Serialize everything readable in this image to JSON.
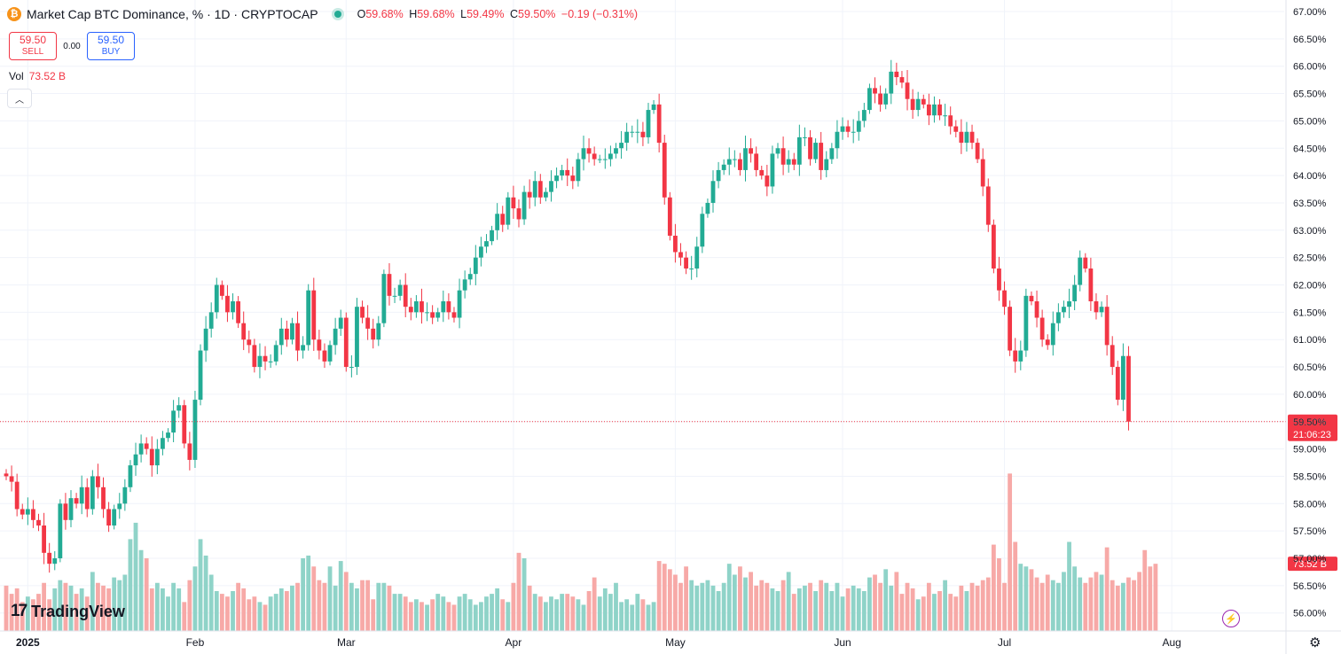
{
  "header": {
    "coin_icon": "bitcoin-icon",
    "title": "Market Cap BTC Dominance, % · 1D · CRYPTOCAP",
    "ohlc": {
      "o_label": "O",
      "o_value": "59.68%",
      "h_label": "H",
      "h_value": "59.68%",
      "l_label": "L",
      "l_value": "59.49%",
      "c_label": "C",
      "c_value": "59.50%",
      "change": "−0.19 (−0.31%)"
    }
  },
  "trade": {
    "sell_price": "59.50",
    "sell_label": "SELL",
    "spread": "0.00",
    "buy_price": "59.50",
    "buy_label": "BUY"
  },
  "volume": {
    "label": "Vol",
    "value": "73.52 B"
  },
  "price_tag": {
    "value": "59.50%",
    "countdown": "21:06:23"
  },
  "volume_tag": "73.52 B",
  "branding": "TradingView",
  "colors": {
    "up": "#22ab94",
    "down": "#f23645",
    "up_volume": "#8fd3c8",
    "down_volume": "#f7a9a7",
    "grid": "#f0f3fa",
    "text": "#131722"
  },
  "chart_data": {
    "type": "candlestick",
    "title": "Market Cap BTC Dominance, % · 1D · CRYPTOCAP",
    "ylim": [
      55.75,
      67.2
    ],
    "y_ticks": [
      "67.00%",
      "66.50%",
      "66.00%",
      "65.50%",
      "65.00%",
      "64.50%",
      "64.00%",
      "63.50%",
      "63.00%",
      "62.50%",
      "62.00%",
      "61.50%",
      "61.00%",
      "60.50%",
      "60.00%",
      "59.50%",
      "59.00%",
      "58.50%",
      "58.00%",
      "57.50%",
      "57.00%",
      "56.50%",
      "56.00%"
    ],
    "x_ticks": [
      {
        "label": "2025",
        "index": 4
      },
      {
        "label": "Feb",
        "index": 35
      },
      {
        "label": "Mar",
        "index": 63
      },
      {
        "label": "Apr",
        "index": 94
      },
      {
        "label": "May",
        "index": 124
      },
      {
        "label": "Jun",
        "index": 155
      },
      {
        "label": "Jul",
        "index": 185
      },
      {
        "label": "Aug",
        "index": 216
      }
    ],
    "current_price": 59.5,
    "closes": [
      58.5,
      58.4,
      57.9,
      57.8,
      57.9,
      57.7,
      57.6,
      57.1,
      56.9,
      57.0,
      58.0,
      57.7,
      58.1,
      58.0,
      58.3,
      57.9,
      58.5,
      58.3,
      57.9,
      57.6,
      57.9,
      58.0,
      58.3,
      58.7,
      58.9,
      59.1,
      59.0,
      58.7,
      59.0,
      59.2,
      59.3,
      59.7,
      59.8,
      59.1,
      58.8,
      59.9,
      60.8,
      61.2,
      61.5,
      62.0,
      61.8,
      61.5,
      61.7,
      61.3,
      61.0,
      60.9,
      60.5,
      60.7,
      60.6,
      60.6,
      60.9,
      61.2,
      61.0,
      61.3,
      60.8,
      60.9,
      61.9,
      61.0,
      60.8,
      60.6,
      60.9,
      61.2,
      61.4,
      60.5,
      60.5,
      61.6,
      61.4,
      61.2,
      61.0,
      61.3,
      62.2,
      61.8,
      61.8,
      62.0,
      61.6,
      61.5,
      61.7,
      61.5,
      61.5,
      61.4,
      61.5,
      61.7,
      61.5,
      61.4,
      61.9,
      62.1,
      62.2,
      62.5,
      62.7,
      62.8,
      63.0,
      63.3,
      63.1,
      63.6,
      63.4,
      63.2,
      63.7,
      63.6,
      63.9,
      63.6,
      63.7,
      63.9,
      64.0,
      64.1,
      64.0,
      63.9,
      64.3,
      64.5,
      64.4,
      64.3,
      64.3,
      64.3,
      64.4,
      64.5,
      64.6,
      64.8,
      64.8,
      64.8,
      64.7,
      65.2,
      65.3,
      64.6,
      63.6,
      62.9,
      62.6,
      62.5,
      62.3,
      62.3,
      62.7,
      63.3,
      63.5,
      63.9,
      64.1,
      64.2,
      64.3,
      64.3,
      64.1,
      64.5,
      64.4,
      64.1,
      64.0,
      63.8,
      64.4,
      64.5,
      64.2,
      64.3,
      64.2,
      64.7,
      64.7,
      64.3,
      64.6,
      64.1,
      64.3,
      64.5,
      64.8,
      64.9,
      64.8,
      64.8,
      65.0,
      65.2,
      65.6,
      65.5,
      65.3,
      65.5,
      65.9,
      65.8,
      65.7,
      65.4,
      65.2,
      65.4,
      65.3,
      65.1,
      65.3,
      65.1,
      65.1,
      64.9,
      64.8,
      64.6,
      64.8,
      64.6,
      64.3,
      63.8,
      63.1,
      62.3,
      61.9,
      61.6,
      60.8,
      60.6,
      60.8,
      61.8,
      61.7,
      61.4,
      61.0,
      60.9,
      61.3,
      61.5,
      61.6,
      61.7,
      62.0,
      62.5,
      62.3,
      61.7,
      61.5,
      61.6,
      60.9,
      60.5,
      59.9,
      60.7,
      59.5
    ],
    "volumes": [
      56.5,
      56.35,
      56.45,
      56.2,
      56.3,
      56.25,
      56.35,
      56.55,
      56.25,
      56.45,
      56.6,
      56.55,
      56.5,
      56.35,
      56.45,
      56.3,
      56.75,
      56.55,
      56.5,
      56.45,
      56.65,
      56.6,
      56.7,
      57.35,
      57.65,
      57.15,
      57.0,
      56.45,
      56.55,
      56.45,
      56.3,
      56.55,
      56.45,
      56.2,
      56.6,
      56.85,
      57.35,
      57.05,
      56.7,
      56.4,
      56.35,
      56.3,
      56.4,
      56.55,
      56.45,
      56.25,
      56.3,
      56.2,
      56.15,
      56.3,
      56.35,
      56.45,
      56.4,
      56.5,
      56.55,
      57.0,
      57.05,
      56.85,
      56.6,
      56.55,
      56.85,
      56.5,
      56.95,
      56.75,
      56.55,
      56.45,
      56.6,
      56.6,
      56.25,
      56.55,
      56.55,
      56.5,
      56.35,
      56.35,
      56.3,
      56.2,
      56.25,
      56.2,
      56.15,
      56.25,
      56.35,
      56.3,
      56.2,
      56.15,
      56.3,
      56.35,
      56.25,
      56.15,
      56.2,
      56.3,
      56.35,
      56.45,
      56.25,
      56.2,
      56.55,
      57.1,
      57.0,
      56.5,
      56.35,
      56.3,
      56.2,
      56.3,
      56.25,
      56.35,
      56.35,
      56.3,
      56.25,
      56.15,
      56.4,
      56.65,
      56.3,
      56.45,
      56.35,
      56.55,
      56.2,
      56.25,
      56.15,
      56.35,
      56.25,
      56.15,
      56.2,
      56.95,
      56.9,
      56.8,
      56.7,
      56.55,
      56.85,
      56.6,
      56.5,
      56.55,
      56.6,
      56.5,
      56.4,
      56.55,
      56.9,
      56.7,
      56.85,
      56.65,
      56.75,
      56.5,
      56.6,
      56.55,
      56.45,
      56.4,
      56.6,
      56.75,
      56.35,
      56.45,
      56.5,
      56.55,
      56.4,
      56.6,
      56.55,
      56.4,
      56.55,
      56.3,
      56.45,
      56.5,
      56.45,
      56.4,
      56.65,
      56.7,
      56.55,
      56.8,
      56.5,
      56.75,
      56.35,
      56.55,
      56.45,
      56.25,
      56.3,
      56.55,
      56.35,
      56.4,
      56.6,
      56.35,
      56.3,
      56.5,
      56.4,
      56.55,
      56.5,
      56.6,
      56.65,
      57.25,
      57.0,
      56.55,
      58.55,
      57.3,
      56.9,
      56.85,
      56.8,
      56.65,
      56.55,
      56.7,
      56.6,
      56.55,
      56.75,
      57.3,
      56.85,
      56.65,
      56.55,
      56.65,
      56.75,
      56.7,
      57.2,
      56.6,
      56.5,
      56.55,
      56.65,
      56.6,
      56.75,
      57.15,
      56.85,
      56.9
    ]
  }
}
